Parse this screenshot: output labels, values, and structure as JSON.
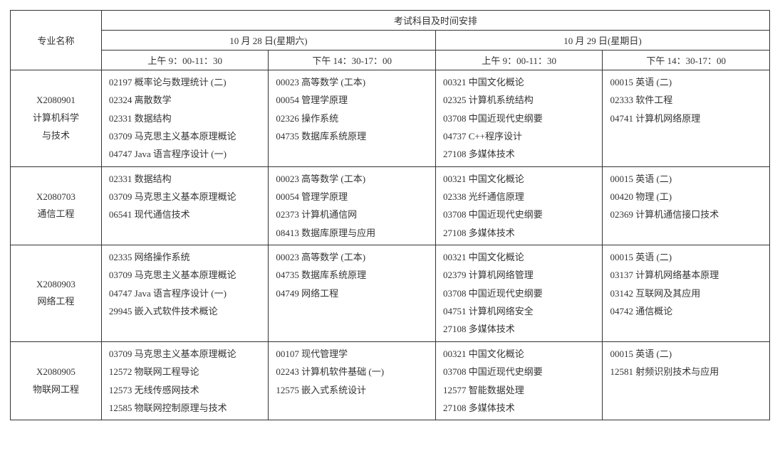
{
  "header": {
    "major_col": "专业名称",
    "title": "考试科目及时间安排",
    "days": [
      "10 月 28 日(星期六)",
      "10 月 29 日(星期日)"
    ],
    "slots": [
      "上午 9：00-11：30",
      "下午 14：30-17：00",
      "上午 9：00-11：30",
      "下午 14：30-17：00"
    ]
  },
  "rows": [
    {
      "major": "X2080901\n计算机科学\n与技术",
      "cells": [
        [
          "02197 概率论与数理统计 (二)",
          "02324 离散数学",
          "02331 数据结构",
          "03709 马克思主义基本原理概论",
          "04747 Java 语言程序设计 (一)"
        ],
        [
          "00023 高等数学 (工本)",
          "00054 管理学原理",
          "02326 操作系统",
          "04735 数据库系统原理"
        ],
        [
          "00321 中国文化概论",
          "02325 计算机系统结构",
          "03708 中国近现代史纲要",
          "04737 C++程序设计",
          "27108 多媒体技术"
        ],
        [
          "00015 英语 (二)",
          "02333 软件工程",
          "04741 计算机网络原理"
        ]
      ]
    },
    {
      "major": "X2080703\n通信工程",
      "cells": [
        [
          "02331 数据结构",
          "03709 马克思主义基本原理概论",
          "06541 现代通信技术"
        ],
        [
          "00023 高等数学 (工本)",
          "00054 管理学原理",
          "02373 计算机通信网",
          "08413 数据库原理与应用"
        ],
        [
          "00321 中国文化概论",
          "02338 光纤通信原理",
          "03708 中国近现代史纲要",
          "27108 多媒体技术"
        ],
        [
          "00015 英语 (二)",
          "00420 物理 (工)",
          "02369 计算机通信接口技术"
        ]
      ]
    },
    {
      "major": "X2080903\n网络工程",
      "cells": [
        [
          "02335 网络操作系统",
          "03709 马克思主义基本原理概论",
          "04747 Java 语言程序设计 (一)",
          "29945 嵌入式软件技术概论"
        ],
        [
          "00023 高等数学 (工本)",
          "04735 数据库系统原理",
          "04749 网络工程"
        ],
        [
          "00321 中国文化概论",
          "02379 计算机网络管理",
          "03708 中国近现代史纲要",
          "04751 计算机网络安全",
          "27108 多媒体技术"
        ],
        [
          "00015 英语 (二)",
          "03137 计算机网络基本原理",
          "03142 互联网及其应用",
          "04742 通信概论"
        ]
      ]
    },
    {
      "major": "X2080905\n物联网工程",
      "cells": [
        [
          "03709 马克思主义基本原理概论",
          "12572 物联网工程导论",
          "12573 无线传感网技术",
          "12585 物联网控制原理与技术"
        ],
        [
          "00107 现代管理学",
          "02243 计算机软件基础 (一)",
          "12575 嵌入式系统设计"
        ],
        [
          "00321 中国文化概论",
          "03708 中国近现代史纲要",
          "12577 智能数据处理",
          "27108 多媒体技术"
        ],
        [
          "00015 英语 (二)",
          "12581 射频识别技术与应用"
        ]
      ]
    }
  ]
}
